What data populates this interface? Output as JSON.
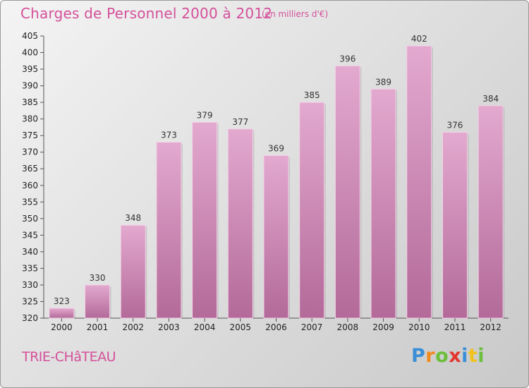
{
  "chart_data": {
    "type": "bar",
    "title": "Charges de Personnel 2000 à 2012",
    "subtitle": "(en milliers d'€)",
    "categories": [
      "2000",
      "2001",
      "2002",
      "2003",
      "2004",
      "2005",
      "2006",
      "2007",
      "2008",
      "2009",
      "2010",
      "2011",
      "2012"
    ],
    "values": [
      323,
      330,
      348,
      373,
      379,
      377,
      369,
      385,
      396,
      389,
      402,
      376,
      384
    ],
    "ylim": [
      320,
      405
    ],
    "ytick_step": 5,
    "grid": false,
    "bar_color": "#c97fae",
    "bar_color_light": "#e3a9cf",
    "bar_color_dark": "#b36a99"
  },
  "footer": {
    "commune": "TRIE-CHâTEAU",
    "logo_letters": [
      "P",
      "r",
      "o",
      "x",
      "i",
      "t",
      "i"
    ],
    "logo_colors": [
      "#3a8fd6",
      "#f28a1b",
      "#6bbf3a",
      "#e2372f",
      "#3a8fd6",
      "#f2c21b",
      "#6bbf3a"
    ]
  }
}
